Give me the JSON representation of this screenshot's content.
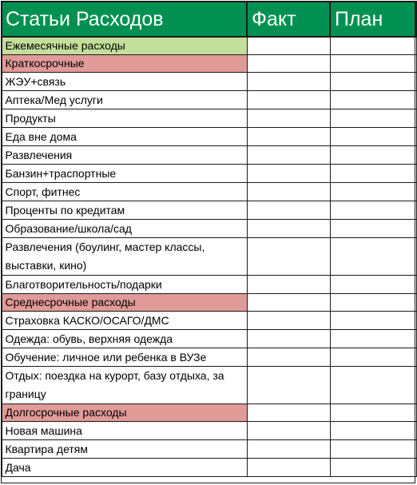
{
  "header": {
    "name_col": "Статьи Расходов",
    "fact_col": "Факт",
    "plan_col": "План"
  },
  "rows": [
    {
      "label": "Ежемесячные расходы",
      "kind": "green"
    },
    {
      "label": "Краткосрочные",
      "kind": "red"
    },
    {
      "label": "ЖЭУ+связь",
      "kind": "normal"
    },
    {
      "label": "Аптека/Мед услуги",
      "kind": "normal"
    },
    {
      "label": "Продукты",
      "kind": "normal"
    },
    {
      "label": "Еда вне дома",
      "kind": "normal"
    },
    {
      "label": "Развлечения",
      "kind": "normal"
    },
    {
      "label": "Банзин+траспортные",
      "kind": "normal"
    },
    {
      "label": "Спорт, фитнес",
      "kind": "normal"
    },
    {
      "label": "Проценты по кредитам",
      "kind": "normal"
    },
    {
      "label": "Образование/школа/сад",
      "kind": "normal"
    },
    {
      "label": "Развлечения (боулинг, мастер классы, выставки, кино)",
      "kind": "tall"
    },
    {
      "label": "Благотворительность/подарки",
      "kind": "normal"
    },
    {
      "label": "Среднесрочные расходы",
      "kind": "red"
    },
    {
      "label": "Страховка КАСКО/ОСАГО/ДМС",
      "kind": "normal"
    },
    {
      "label": "Одежда: обувь, верхняя одежда",
      "kind": "normal"
    },
    {
      "label": "Обучение: личное или ребенка в ВУЗе",
      "kind": "normal"
    },
    {
      "label": "Отдых: поездка на курорт, базу отдыха, за границу",
      "kind": "tall"
    },
    {
      "label": "Долгосрочные расходы",
      "kind": "red"
    },
    {
      "label": "Новая машина",
      "kind": "normal"
    },
    {
      "label": "Квартира детям",
      "kind": "normal"
    },
    {
      "label": "Дача",
      "kind": "normal"
    }
  ],
  "colors": {
    "header_bg": "#009152",
    "header_text": "#ffffff",
    "green_row": "#c4de9c",
    "red_row": "#e09a98"
  }
}
